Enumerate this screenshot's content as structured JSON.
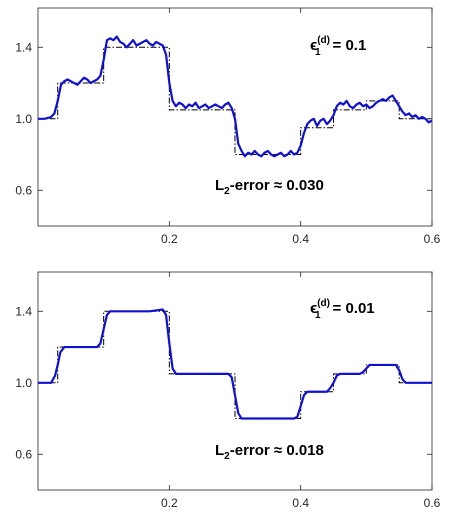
{
  "chart_data": [
    {
      "type": "line",
      "title": "",
      "xlabel": "",
      "ylabel": "",
      "xlim": [
        0,
        0.6
      ],
      "ylim": [
        0.4,
        1.62
      ],
      "xticks": [
        "0.2",
        "0.4",
        "0.6"
      ],
      "yticks": [
        "0.6",
        "1.0",
        "1.4"
      ],
      "grid": false,
      "colors": {
        "approximation": "#1010d0",
        "reference": "#000000"
      },
      "annotation": {
        "symbol": "ϵ",
        "sub": "1",
        "sup": "(d)",
        "equals": "= 0.1"
      },
      "error_label": {
        "main": "L",
        "sub": "2",
        "rest": "-error ≈ 0.030"
      },
      "series": [
        {
          "style": "dash-dot",
          "x": [
            0,
            0.03,
            0.03,
            0.1,
            0.1,
            0.2,
            0.2,
            0.3,
            0.3,
            0.4,
            0.4,
            0.45,
            0.45,
            0.5,
            0.5,
            0.55,
            0.55,
            0.6
          ],
          "y": [
            1.0,
            1.0,
            1.2,
            1.2,
            1.4,
            1.4,
            1.05,
            1.05,
            0.8,
            0.8,
            0.95,
            0.95,
            1.05,
            1.05,
            1.1,
            1.1,
            1.0,
            1.0
          ]
        },
        {
          "style": "solid",
          "x": [
            0,
            0.01,
            0.02,
            0.025,
            0.03,
            0.035,
            0.04,
            0.045,
            0.05,
            0.055,
            0.06,
            0.065,
            0.07,
            0.075,
            0.08,
            0.085,
            0.09,
            0.095,
            0.1,
            0.105,
            0.11,
            0.115,
            0.12,
            0.125,
            0.13,
            0.135,
            0.14,
            0.145,
            0.15,
            0.155,
            0.16,
            0.165,
            0.17,
            0.175,
            0.18,
            0.185,
            0.19,
            0.195,
            0.2,
            0.205,
            0.21,
            0.215,
            0.22,
            0.225,
            0.23,
            0.235,
            0.24,
            0.245,
            0.25,
            0.255,
            0.26,
            0.265,
            0.27,
            0.275,
            0.28,
            0.285,
            0.29,
            0.295,
            0.3,
            0.305,
            0.31,
            0.315,
            0.32,
            0.325,
            0.33,
            0.335,
            0.34,
            0.345,
            0.35,
            0.355,
            0.36,
            0.365,
            0.37,
            0.375,
            0.38,
            0.385,
            0.39,
            0.395,
            0.4,
            0.405,
            0.41,
            0.415,
            0.42,
            0.425,
            0.43,
            0.435,
            0.44,
            0.445,
            0.45,
            0.455,
            0.46,
            0.465,
            0.47,
            0.475,
            0.48,
            0.485,
            0.49,
            0.495,
            0.5,
            0.505,
            0.51,
            0.515,
            0.52,
            0.525,
            0.53,
            0.535,
            0.54,
            0.545,
            0.55,
            0.555,
            0.56,
            0.565,
            0.57,
            0.575,
            0.58,
            0.585,
            0.59,
            0.595,
            0.6
          ],
          "y": [
            1.0,
            1.0,
            1.01,
            1.03,
            1.1,
            1.19,
            1.21,
            1.22,
            1.21,
            1.2,
            1.19,
            1.21,
            1.23,
            1.22,
            1.2,
            1.21,
            1.22,
            1.24,
            1.33,
            1.44,
            1.45,
            1.44,
            1.46,
            1.43,
            1.42,
            1.4,
            1.42,
            1.44,
            1.41,
            1.42,
            1.43,
            1.44,
            1.42,
            1.41,
            1.43,
            1.42,
            1.41,
            1.36,
            1.2,
            1.1,
            1.07,
            1.09,
            1.08,
            1.06,
            1.08,
            1.07,
            1.09,
            1.06,
            1.07,
            1.08,
            1.06,
            1.07,
            1.08,
            1.07,
            1.06,
            1.08,
            1.09,
            1.06,
            1.0,
            0.86,
            0.82,
            0.79,
            0.81,
            0.8,
            0.82,
            0.8,
            0.79,
            0.81,
            0.82,
            0.8,
            0.79,
            0.8,
            0.81,
            0.79,
            0.8,
            0.82,
            0.8,
            0.81,
            0.85,
            0.92,
            0.97,
            0.99,
            1.0,
            0.96,
            0.99,
            1.0,
            0.97,
            0.99,
            1.02,
            1.07,
            1.09,
            1.08,
            1.1,
            1.07,
            1.06,
            1.08,
            1.09,
            1.07,
            1.08,
            1.06,
            1.07,
            1.09,
            1.1,
            1.11,
            1.1,
            1.12,
            1.13,
            1.1,
            1.07,
            1.04,
            1.02,
            1.03,
            1.01,
            1.02,
            1.0,
            1.01,
            1.0,
            0.98,
            0.99
          ]
        }
      ]
    },
    {
      "type": "line",
      "title": "",
      "xlabel": "",
      "ylabel": "",
      "xlim": [
        0,
        0.6
      ],
      "ylim": [
        0.4,
        1.62
      ],
      "xticks": [
        "0.2",
        "0.4",
        "0.6"
      ],
      "yticks": [
        "0.6",
        "1.0",
        "1.4"
      ],
      "grid": false,
      "colors": {
        "approximation": "#1010d0",
        "reference": "#000000"
      },
      "annotation": {
        "symbol": "ϵ",
        "sub": "1",
        "sup": "(d)",
        "equals": "= 0.01"
      },
      "error_label": {
        "main": "L",
        "sub": "2",
        "rest": "-error ≈ 0.018"
      },
      "series": [
        {
          "style": "dash-dot",
          "x": [
            0,
            0.03,
            0.03,
            0.1,
            0.1,
            0.2,
            0.2,
            0.3,
            0.3,
            0.4,
            0.4,
            0.45,
            0.45,
            0.5,
            0.5,
            0.55,
            0.55,
            0.6
          ],
          "y": [
            1.0,
            1.0,
            1.2,
            1.2,
            1.4,
            1.4,
            1.05,
            1.05,
            0.8,
            0.8,
            0.95,
            0.95,
            1.05,
            1.05,
            1.1,
            1.1,
            1.0,
            1.0
          ]
        },
        {
          "style": "solid",
          "x": [
            0,
            0.02,
            0.026,
            0.03,
            0.034,
            0.04,
            0.06,
            0.08,
            0.09,
            0.095,
            0.1,
            0.105,
            0.11,
            0.13,
            0.15,
            0.17,
            0.19,
            0.195,
            0.2,
            0.205,
            0.21,
            0.25,
            0.29,
            0.295,
            0.3,
            0.305,
            0.31,
            0.35,
            0.39,
            0.395,
            0.4,
            0.405,
            0.41,
            0.43,
            0.44,
            0.445,
            0.45,
            0.455,
            0.46,
            0.48,
            0.49,
            0.495,
            0.5,
            0.505,
            0.51,
            0.53,
            0.545,
            0.55,
            0.555,
            0.56,
            0.58,
            0.6
          ],
          "y": [
            1.0,
            1.0,
            1.04,
            1.1,
            1.17,
            1.2,
            1.2,
            1.2,
            1.2,
            1.22,
            1.3,
            1.38,
            1.4,
            1.4,
            1.4,
            1.4,
            1.41,
            1.38,
            1.22,
            1.08,
            1.05,
            1.05,
            1.05,
            1.03,
            0.93,
            0.83,
            0.8,
            0.8,
            0.8,
            0.81,
            0.87,
            0.93,
            0.95,
            0.95,
            0.95,
            0.97,
            1.0,
            1.04,
            1.05,
            1.05,
            1.05,
            1.06,
            1.08,
            1.1,
            1.1,
            1.1,
            1.1,
            1.07,
            1.02,
            1.0,
            1.0,
            1.0
          ]
        }
      ]
    }
  ]
}
